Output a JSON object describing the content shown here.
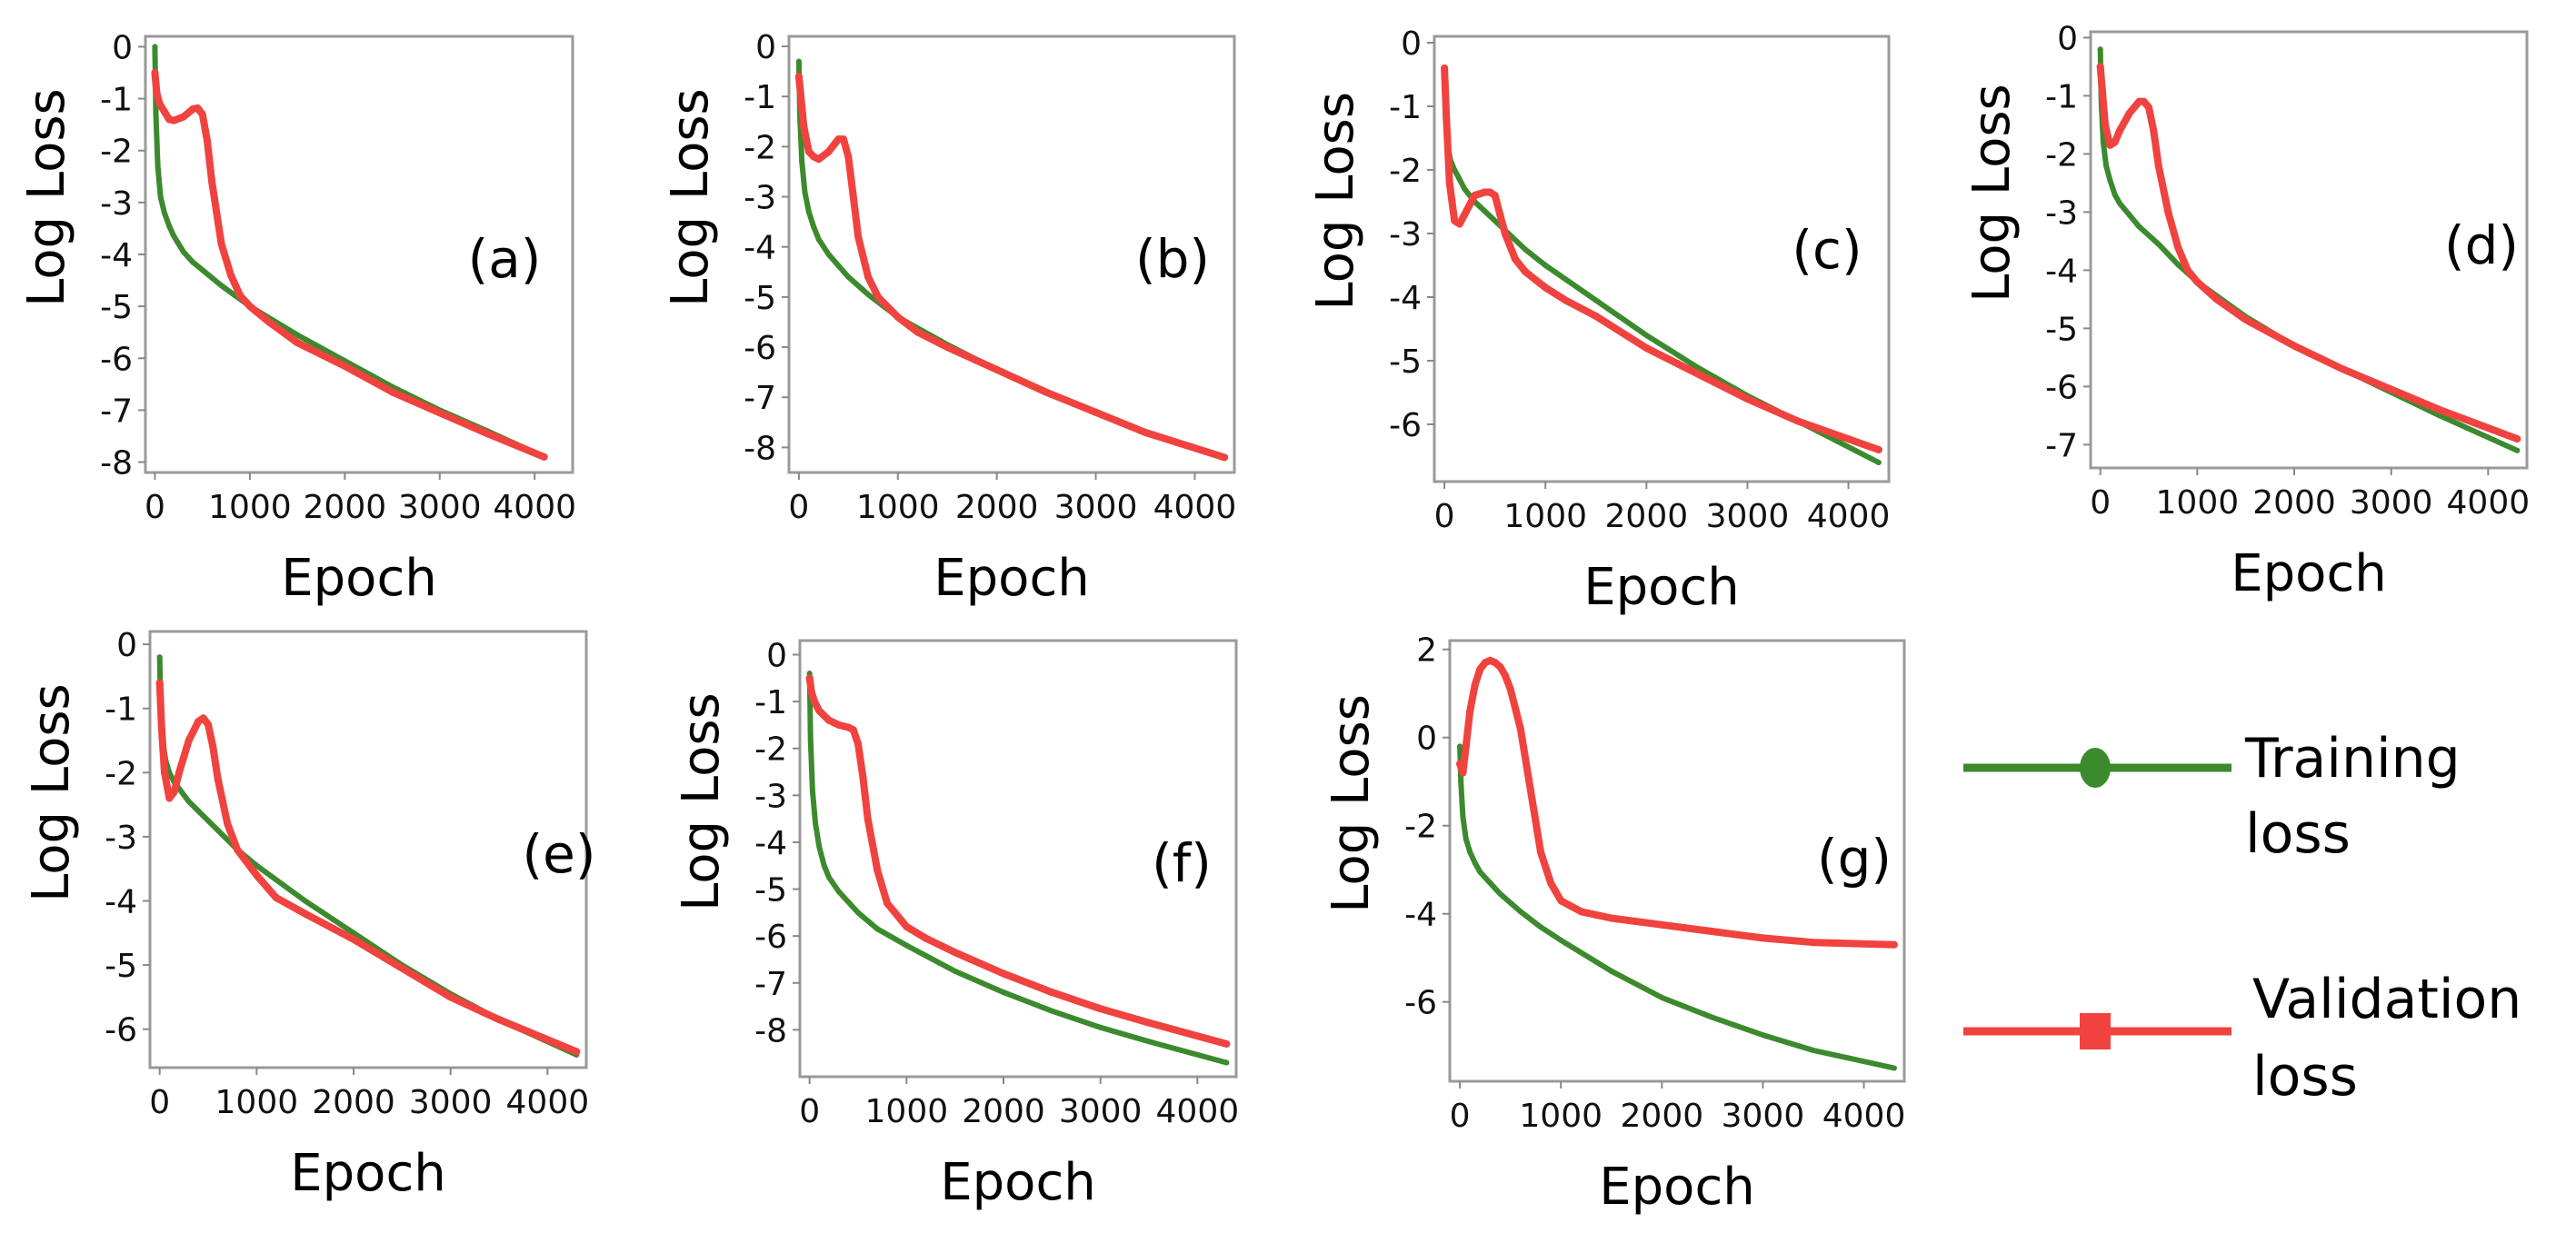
{
  "colors": {
    "training": "#3c8a2e",
    "validation": "#f0433f"
  },
  "legend": {
    "training": {
      "line1": "Training",
      "line2": "loss",
      "marker": "circle"
    },
    "validation": {
      "line1": "Validation",
      "line2": "loss",
      "marker": "square"
    }
  },
  "chart_data": [
    {
      "type": "line",
      "panel_label": "(a)",
      "xlabel": "Epoch",
      "ylabel": "Log Loss",
      "xlim": [
        -100,
        4400
      ],
      "ylim": [
        -8.2,
        0.2
      ],
      "xticks": [
        0,
        1000,
        2000,
        3000,
        4000
      ],
      "yticks": [
        0,
        -1,
        -2,
        -3,
        -4,
        -5,
        -6,
        -7,
        -8
      ],
      "series": [
        {
          "name": "Training loss",
          "x": [
            0,
            10,
            30,
            60,
            100,
            150,
            200,
            300,
            400,
            500,
            700,
            1000,
            1500,
            2000,
            2500,
            3000,
            3500,
            4100
          ],
          "y": [
            0.0,
            -1.3,
            -2.3,
            -2.9,
            -3.2,
            -3.45,
            -3.65,
            -3.95,
            -4.15,
            -4.3,
            -4.6,
            -5.0,
            -5.55,
            -6.05,
            -6.55,
            -7.0,
            -7.4,
            -7.9
          ]
        },
        {
          "name": "Validation loss",
          "x": [
            0,
            20,
            50,
            100,
            150,
            200,
            300,
            400,
            450,
            500,
            550,
            600,
            700,
            800,
            900,
            1000,
            1200,
            1500,
            2000,
            2500,
            3000,
            3500,
            4100
          ],
          "y": [
            -0.5,
            -0.9,
            -1.1,
            -1.25,
            -1.4,
            -1.42,
            -1.35,
            -1.2,
            -1.18,
            -1.3,
            -1.8,
            -2.6,
            -3.8,
            -4.4,
            -4.8,
            -5.0,
            -5.3,
            -5.7,
            -6.15,
            -6.65,
            -7.05,
            -7.45,
            -7.9
          ]
        }
      ]
    },
    {
      "type": "line",
      "panel_label": "(b)",
      "xlabel": "Epoch",
      "ylabel": "Log Loss",
      "xlim": [
        -100,
        4400
      ],
      "ylim": [
        -8.5,
        0.2
      ],
      "xticks": [
        0,
        1000,
        2000,
        3000,
        4000
      ],
      "yticks": [
        0,
        -1,
        -2,
        -3,
        -4,
        -5,
        -6,
        -7,
        -8
      ],
      "series": [
        {
          "name": "Training loss",
          "x": [
            0,
            10,
            30,
            60,
            100,
            150,
            200,
            300,
            500,
            700,
            1000,
            1500,
            2000,
            2500,
            3000,
            3500,
            4300
          ],
          "y": [
            -0.3,
            -1.4,
            -2.3,
            -2.9,
            -3.3,
            -3.6,
            -3.85,
            -4.15,
            -4.6,
            -4.95,
            -5.4,
            -5.95,
            -6.45,
            -6.9,
            -7.3,
            -7.7,
            -8.2
          ]
        },
        {
          "name": "Validation loss",
          "x": [
            0,
            20,
            50,
            100,
            150,
            200,
            300,
            400,
            450,
            500,
            550,
            600,
            700,
            800,
            1000,
            1200,
            1500,
            2000,
            2500,
            3000,
            3500,
            4300
          ],
          "y": [
            -0.6,
            -1.0,
            -1.6,
            -2.1,
            -2.2,
            -2.25,
            -2.1,
            -1.85,
            -1.85,
            -2.2,
            -3.0,
            -3.8,
            -4.6,
            -5.0,
            -5.4,
            -5.7,
            -6.0,
            -6.45,
            -6.9,
            -7.3,
            -7.7,
            -8.2
          ]
        }
      ]
    },
    {
      "type": "line",
      "panel_label": "(c)",
      "xlabel": "Epoch",
      "ylabel": "Log Loss",
      "xlim": [
        -100,
        4400
      ],
      "ylim": [
        -6.9,
        0.1
      ],
      "xticks": [
        0,
        1000,
        2000,
        3000,
        4000
      ],
      "yticks": [
        0,
        -1,
        -2,
        -3,
        -4,
        -5,
        -6
      ],
      "series": [
        {
          "name": "Training loss",
          "x": [
            0,
            10,
            30,
            60,
            100,
            150,
            200,
            300,
            400,
            600,
            800,
            1000,
            1500,
            2000,
            2500,
            3000,
            3500,
            4300
          ],
          "y": [
            -0.4,
            -1.1,
            -1.6,
            -1.85,
            -2.0,
            -2.15,
            -2.3,
            -2.5,
            -2.65,
            -2.95,
            -3.25,
            -3.5,
            -4.05,
            -4.6,
            -5.1,
            -5.55,
            -5.95,
            -6.6
          ]
        },
        {
          "name": "Validation loss",
          "x": [
            0,
            20,
            50,
            100,
            150,
            200,
            300,
            400,
            450,
            500,
            550,
            600,
            700,
            800,
            1000,
            1200,
            1500,
            2000,
            2500,
            3000,
            3500,
            4300
          ],
          "y": [
            -0.4,
            -1.2,
            -2.2,
            -2.8,
            -2.85,
            -2.7,
            -2.4,
            -2.35,
            -2.35,
            -2.4,
            -2.7,
            -3.0,
            -3.4,
            -3.6,
            -3.85,
            -4.05,
            -4.3,
            -4.8,
            -5.2,
            -5.6,
            -5.95,
            -6.4
          ]
        }
      ]
    },
    {
      "type": "line",
      "panel_label": "(d)",
      "xlabel": "Epoch",
      "ylabel": "Log Loss",
      "xlim": [
        -100,
        4400
      ],
      "ylim": [
        -7.4,
        0.1
      ],
      "xticks": [
        0,
        1000,
        2000,
        3000,
        4000
      ],
      "yticks": [
        0,
        -1,
        -2,
        -3,
        -4,
        -5,
        -6,
        -7
      ],
      "series": [
        {
          "name": "Training loss",
          "x": [
            0,
            10,
            30,
            60,
            100,
            150,
            200,
            300,
            400,
            600,
            800,
            1000,
            1500,
            2000,
            2500,
            3000,
            3500,
            4300
          ],
          "y": [
            -0.2,
            -1.1,
            -1.8,
            -2.2,
            -2.45,
            -2.7,
            -2.85,
            -3.05,
            -3.25,
            -3.55,
            -3.9,
            -4.2,
            -4.8,
            -5.3,
            -5.7,
            -6.1,
            -6.5,
            -7.1
          ]
        },
        {
          "name": "Validation loss",
          "x": [
            0,
            20,
            50,
            100,
            150,
            200,
            300,
            400,
            450,
            500,
            550,
            600,
            700,
            800,
            900,
            1000,
            1200,
            1500,
            2000,
            2500,
            3000,
            3500,
            4300
          ],
          "y": [
            -0.5,
            -0.9,
            -1.5,
            -1.85,
            -1.8,
            -1.6,
            -1.3,
            -1.1,
            -1.1,
            -1.2,
            -1.6,
            -2.2,
            -3.0,
            -3.6,
            -4.0,
            -4.2,
            -4.5,
            -4.85,
            -5.3,
            -5.7,
            -6.05,
            -6.4,
            -6.9
          ]
        }
      ]
    },
    {
      "type": "line",
      "panel_label": "(e)",
      "xlabel": "Epoch",
      "ylabel": "Log Loss",
      "xlim": [
        -100,
        4400
      ],
      "ylim": [
        -6.6,
        0.2
      ],
      "xticks": [
        0,
        1000,
        2000,
        3000,
        4000
      ],
      "yticks": [
        0,
        -1,
        -2,
        -3,
        -4,
        -5,
        -6
      ],
      "series": [
        {
          "name": "Training loss",
          "x": [
            0,
            10,
            30,
            60,
            100,
            150,
            200,
            300,
            400,
            600,
            800,
            1000,
            1500,
            2000,
            2500,
            3000,
            3500,
            4300
          ],
          "y": [
            -0.2,
            -1.0,
            -1.5,
            -1.8,
            -2.0,
            -2.15,
            -2.25,
            -2.45,
            -2.6,
            -2.9,
            -3.2,
            -3.45,
            -4.0,
            -4.5,
            -5.0,
            -5.45,
            -5.85,
            -6.4
          ]
        },
        {
          "name": "Validation loss",
          "x": [
            0,
            20,
            50,
            100,
            150,
            200,
            300,
            400,
            450,
            500,
            550,
            600,
            700,
            800,
            1000,
            1200,
            1500,
            2000,
            2500,
            3000,
            3500,
            4300
          ],
          "y": [
            -0.6,
            -1.3,
            -2.0,
            -2.4,
            -2.3,
            -2.0,
            -1.5,
            -1.2,
            -1.15,
            -1.25,
            -1.6,
            -2.1,
            -2.8,
            -3.2,
            -3.6,
            -3.95,
            -4.2,
            -4.6,
            -5.05,
            -5.5,
            -5.85,
            -6.35
          ]
        }
      ]
    },
    {
      "type": "line",
      "panel_label": "(f)",
      "xlabel": "Epoch",
      "ylabel": "Log Loss",
      "xlim": [
        -100,
        4400
      ],
      "ylim": [
        -9.0,
        0.3
      ],
      "xticks": [
        0,
        1000,
        2000,
        3000,
        4000
      ],
      "yticks": [
        0,
        -1,
        -2,
        -3,
        -4,
        -5,
        -6,
        -7,
        -8
      ],
      "series": [
        {
          "name": "Training loss",
          "x": [
            0,
            10,
            30,
            60,
            100,
            150,
            200,
            300,
            500,
            700,
            1000,
            1500,
            2000,
            2500,
            3000,
            3500,
            4300
          ],
          "y": [
            -0.4,
            -1.8,
            -2.9,
            -3.6,
            -4.1,
            -4.5,
            -4.75,
            -5.05,
            -5.5,
            -5.85,
            -6.2,
            -6.75,
            -7.2,
            -7.6,
            -7.95,
            -8.25,
            -8.7
          ]
        },
        {
          "name": "Validation loss",
          "x": [
            0,
            20,
            50,
            100,
            150,
            200,
            300,
            400,
            450,
            500,
            550,
            600,
            700,
            800,
            1000,
            1200,
            1500,
            2000,
            2500,
            3000,
            3500,
            4300
          ],
          "y": [
            -0.5,
            -0.8,
            -1.0,
            -1.2,
            -1.3,
            -1.4,
            -1.5,
            -1.55,
            -1.6,
            -1.9,
            -2.6,
            -3.5,
            -4.6,
            -5.3,
            -5.8,
            -6.05,
            -6.35,
            -6.8,
            -7.2,
            -7.55,
            -7.85,
            -8.3
          ]
        }
      ]
    },
    {
      "type": "line",
      "panel_label": "(g)",
      "xlabel": "Epoch",
      "ylabel": "Log Loss",
      "xlim": [
        -100,
        4400
      ],
      "ylim": [
        -7.8,
        2.2
      ],
      "xticks": [
        0,
        1000,
        2000,
        3000,
        4000
      ],
      "yticks": [
        2,
        0,
        -2,
        -4,
        -6
      ],
      "series": [
        {
          "name": "Training loss",
          "x": [
            0,
            10,
            30,
            60,
            100,
            150,
            200,
            300,
            400,
            600,
            800,
            1000,
            1500,
            2000,
            2500,
            3000,
            3500,
            4300
          ],
          "y": [
            -0.2,
            -1.0,
            -1.8,
            -2.3,
            -2.6,
            -2.85,
            -3.05,
            -3.3,
            -3.55,
            -3.95,
            -4.3,
            -4.6,
            -5.3,
            -5.9,
            -6.35,
            -6.75,
            -7.1,
            -7.5
          ]
        },
        {
          "name": "Validation loss",
          "x": [
            0,
            30,
            60,
            100,
            150,
            200,
            250,
            300,
            350,
            400,
            450,
            500,
            600,
            700,
            800,
            900,
            1000,
            1200,
            1500,
            2000,
            2500,
            3000,
            3500,
            4300
          ],
          "y": [
            -0.6,
            -0.8,
            -0.2,
            0.6,
            1.2,
            1.55,
            1.7,
            1.75,
            1.7,
            1.6,
            1.4,
            1.1,
            0.2,
            -1.2,
            -2.6,
            -3.3,
            -3.7,
            -3.95,
            -4.1,
            -4.25,
            -4.4,
            -4.55,
            -4.65,
            -4.7
          ]
        }
      ]
    }
  ]
}
